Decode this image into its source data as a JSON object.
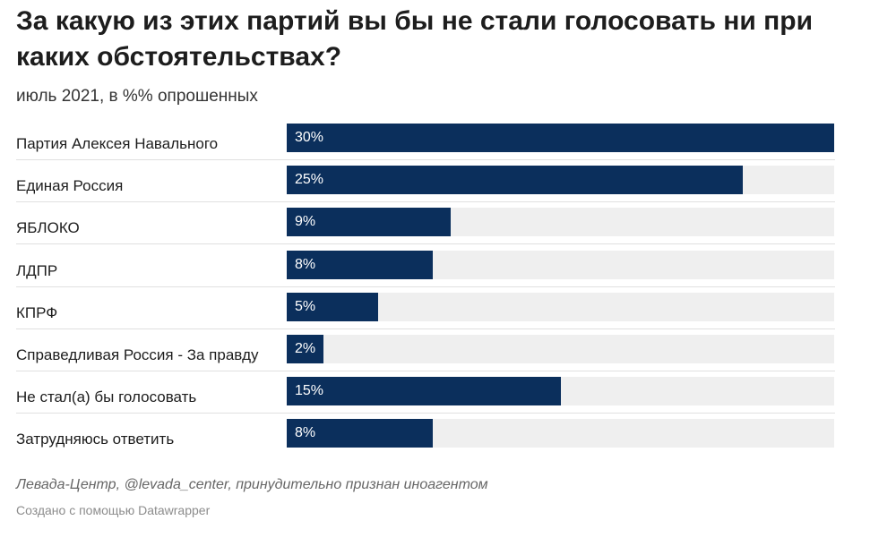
{
  "chart_data": {
    "type": "bar",
    "orientation": "horizontal",
    "title": "За какую из этих партий вы бы не стали голосовать ни при каких обстоятельствах?",
    "subtitle": "июль 2021, в %% опрошенных",
    "categories": [
      "Партия Алексея Навального",
      "Единая Россия",
      "ЯБЛОКО",
      "ЛДПР",
      "КПРФ",
      "Справедливая Россия - За правду",
      "Не стал(а) бы голосовать",
      "Затрудняюсь ответить"
    ],
    "values": [
      30,
      25,
      9,
      8,
      5,
      2,
      15,
      8
    ],
    "value_labels": [
      "30%",
      "25%",
      "9%",
      "8%",
      "5%",
      "2%",
      "15%",
      "8%"
    ],
    "xlim": [
      0,
      30
    ],
    "colors": {
      "bar": "#0b2f5c",
      "track": "#efefef"
    },
    "source": "Левада-Центр, @levada_center, принудительно признан иноагентом",
    "credit": "Создано с помощью Datawrapper"
  }
}
